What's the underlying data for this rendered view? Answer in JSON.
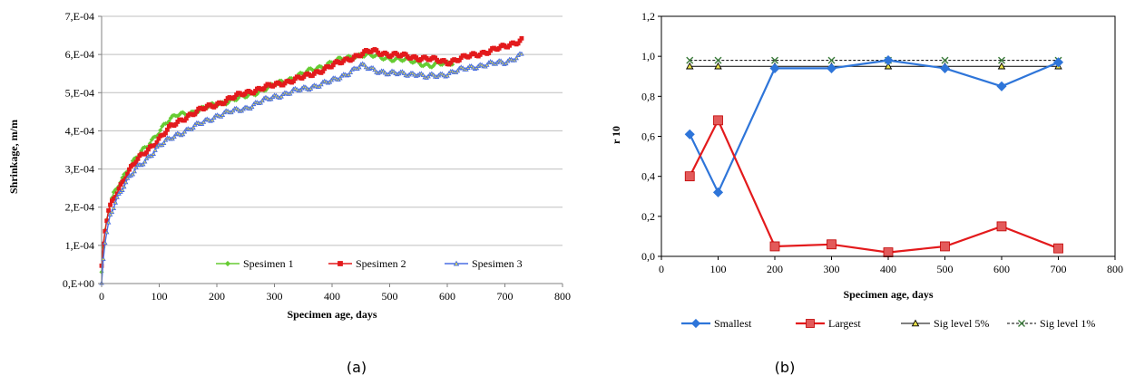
{
  "chart_data": [
    {
      "panel": "(a)",
      "type": "line",
      "xlabel": "Specimen age, days",
      "ylabel": "Shrinkage, m/m",
      "xlim": [
        0,
        800
      ],
      "ylim": [
        0,
        0.0007
      ],
      "xticks": [
        "0",
        "100",
        "200",
        "300",
        "400",
        "500",
        "600",
        "700",
        "800"
      ],
      "yticks": [
        "0,E+00",
        "1,E-04",
        "2,E-04",
        "3,E-04",
        "4,E-04",
        "5,E-04",
        "6,E-04",
        "7,E-04"
      ],
      "grid": "horizontal",
      "legend": "bottom-right",
      "series": [
        {
          "name": "Spesimen 1",
          "color": "#66cc33",
          "marker": "diamond",
          "x": [
            0,
            3,
            7,
            12,
            20,
            30,
            45,
            60,
            80,
            100,
            110,
            130,
            160,
            200,
            250,
            300,
            350,
            400,
            450,
            500,
            550,
            570,
            610
          ],
          "y": [
            3e-05,
            9e-05,
            0.00015,
            0.00019,
            0.00023,
            0.00026,
            0.0003,
            0.00033,
            0.00036,
            0.0004,
            0.00042,
            0.00044,
            0.00045,
            0.00047,
            0.00049,
            0.00052,
            0.00055,
            0.00058,
            0.0006,
            0.00059,
            0.00058,
            0.00057,
            0.00058
          ]
        },
        {
          "name": "Spesimen 2",
          "color": "#e31a1c",
          "marker": "square",
          "x": [
            0,
            3,
            7,
            12,
            20,
            30,
            45,
            60,
            80,
            100,
            120,
            150,
            180,
            200,
            250,
            300,
            350,
            400,
            430,
            450,
            470,
            500,
            560,
            600,
            650,
            700,
            730
          ],
          "y": [
            4e-05,
            0.0001,
            0.00015,
            0.00019,
            0.00022,
            0.00025,
            0.00029,
            0.00032,
            0.00035,
            0.00038,
            0.00041,
            0.00044,
            0.00046,
            0.00047,
            0.0005,
            0.00052,
            0.00054,
            0.00057,
            0.00059,
            0.0006,
            0.00061,
            0.0006,
            0.00059,
            0.00058,
            0.0006,
            0.00062,
            0.00064
          ]
        },
        {
          "name": "Spesimen 3",
          "color": "#4a6fe3",
          "marker": "triangle",
          "x": [
            0,
            2,
            5,
            10,
            15,
            25,
            40,
            60,
            80,
            100,
            130,
            160,
            200,
            250,
            300,
            350,
            400,
            450,
            500,
            550,
            560,
            600,
            650,
            700,
            730
          ],
          "y": [
            0.0,
            5e-05,
            0.0001,
            0.00014,
            0.00018,
            0.00022,
            0.00026,
            0.0003,
            0.00033,
            0.00036,
            0.00039,
            0.00041,
            0.00044,
            0.00046,
            0.00049,
            0.00051,
            0.00053,
            0.00057,
            0.00055,
            0.00055,
            0.00054,
            0.00055,
            0.00057,
            0.00058,
            0.0006
          ]
        }
      ]
    },
    {
      "panel": "(b)",
      "type": "line",
      "xlabel": "Specimen age, days",
      "ylabel": "r 10",
      "xlim": [
        0,
        800
      ],
      "ylim": [
        0,
        1.2
      ],
      "xticks": [
        "0",
        "100",
        "200",
        "300",
        "400",
        "500",
        "600",
        "700",
        "800"
      ],
      "yticks": [
        "0,0",
        "0,2",
        "0,4",
        "0,6",
        "0,8",
        "1,0",
        "1,2"
      ],
      "grid": "none",
      "legend": "bottom",
      "x": [
        50,
        100,
        200,
        300,
        400,
        500,
        600,
        700
      ],
      "series": [
        {
          "name": "Smallest",
          "color": "#2e75d9",
          "marker": "diamond",
          "style": "solid",
          "values": [
            0.61,
            0.32,
            0.94,
            0.94,
            0.98,
            0.94,
            0.85,
            0.97
          ]
        },
        {
          "name": "Largest",
          "color": "#e31a1c",
          "marker": "square",
          "style": "solid",
          "values": [
            0.4,
            0.68,
            0.05,
            0.06,
            0.02,
            0.05,
            0.15,
            0.04
          ]
        },
        {
          "name": "Sig level 5%",
          "color": "#000000",
          "marker": "triangle",
          "style": "solid",
          "values": [
            0.95,
            0.95,
            0.95,
            0.95,
            0.95,
            0.95,
            0.95,
            0.95
          ]
        },
        {
          "name": "Sig level 1%",
          "color": "#000000",
          "marker": "x",
          "style": "dashed",
          "values": [
            0.98,
            0.98,
            0.98,
            0.98,
            0.98,
            0.98,
            0.98,
            0.98
          ]
        }
      ]
    }
  ],
  "captions": [
    "(a)",
    "(b)"
  ]
}
